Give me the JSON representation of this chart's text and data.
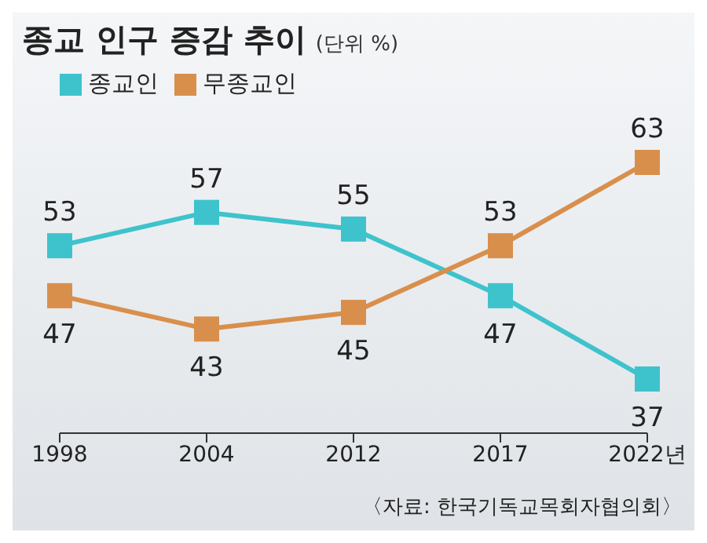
{
  "chart_data": {
    "type": "line",
    "title": "종교 인구 증감 추이",
    "subtitle": "(단위 %)",
    "categories": [
      "1998",
      "2004",
      "2012",
      "2017",
      "2022년"
    ],
    "series": [
      {
        "name": "종교인",
        "color": "#3ec3cc",
        "values": [
          53,
          57,
          55,
          47,
          37
        ]
      },
      {
        "name": "무종교인",
        "color": "#d98f4c",
        "values": [
          47,
          43,
          45,
          53,
          63
        ]
      }
    ],
    "data_labels": true,
    "marker": "square",
    "line_style": "solid",
    "legend": "top left",
    "grid": false,
    "tick_labels": "x",
    "annotations": [
      "〈자료: 한국기독교목회자협의회〉"
    ]
  }
}
